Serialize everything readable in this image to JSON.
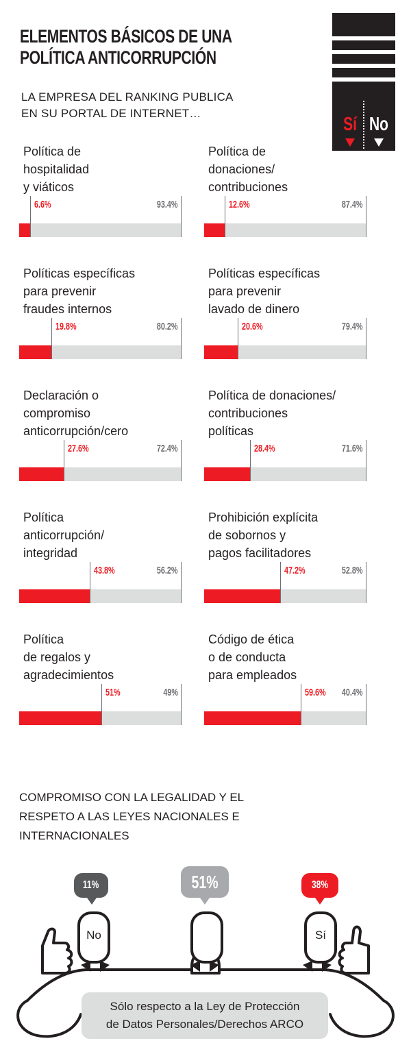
{
  "header": {
    "title": "ELEMENTOS BÁSICOS DE UNA\nPOLÍTICA ANTICORRUPCIÓN",
    "subtitle": "LA EMPRESA DEL RANKING PUBLICA\nEN SU PORTAL DE INTERNET…"
  },
  "legend": {
    "si": "Sí",
    "no": "No"
  },
  "colors": {
    "si": "#ed1c24",
    "no": "#dcdddd",
    "text": "#231f20",
    "bubble_no": "#58595b",
    "bubble_mid": "#a7a9ac"
  },
  "chart_data": [
    {
      "type": "bar",
      "stacked": true,
      "categories": [
        "Política de\nhospitalidad\ny viáticos",
        "Política de\ndonaciones/\ncontribuciones",
        "Políticas específicas\npara prevenir\nfraudes internos",
        "Políticas específicas\npara prevenir\nlavado de dinero",
        "Declaración o\ncompromiso\nanticorrupción/cero",
        "Política de donaciones/\ncontribuciones\npolíticas",
        "Política\nanticorrupción/\nintegridad",
        "Prohibición explícita\nde sobornos y\npagos facilitadores",
        "Política\nde regalos y\nagradecimientos",
        "Código de ética\no de conducta\npara empleados"
      ],
      "series": [
        {
          "name": "Sí",
          "values": [
            6.6,
            12.6,
            19.8,
            20.6,
            27.6,
            28.4,
            43.8,
            47.2,
            51,
            59.6
          ],
          "labels": [
            "6.6%",
            "12.6%",
            "19.8%",
            "20.6%",
            "27.6%",
            "28.4%",
            "43.8%",
            "47.2%",
            "51%",
            "59.6%"
          ]
        },
        {
          "name": "No",
          "values": [
            93.4,
            87.4,
            80.2,
            79.4,
            72.4,
            71.6,
            56.2,
            52.8,
            49,
            40.4
          ],
          "labels": [
            "93.4%",
            "87.4%",
            "80.2%",
            "79.4%",
            "72.4%",
            "71.6%",
            "56.2%",
            "52.8%",
            "49%",
            "40.4%"
          ]
        }
      ],
      "ylim": [
        0,
        100
      ]
    },
    {
      "type": "bar",
      "title": "COMPROMISO CON LA LEGALIDAD Y EL\nRESPETO A LAS LEYES NACIONALES E\nINTERNACIONALES",
      "categories": [
        "No",
        "Sólo respecto a la Ley de Protección\nde Datos Personales/Derechos ARCO",
        "Sí"
      ],
      "values": [
        11,
        51,
        38
      ],
      "labels": [
        "11%",
        "51%",
        "38%"
      ]
    }
  ],
  "section2": {
    "title": "COMPROMISO CON LA LEGALIDAD Y EL\nRESPETO A LAS LEYES NACIONALES E\nINTERNACIONALES",
    "no_head": "No",
    "si_head": "Sí",
    "note": "Sólo respecto a la Ley de Protección\nde Datos Personales/Derechos ARCO"
  }
}
